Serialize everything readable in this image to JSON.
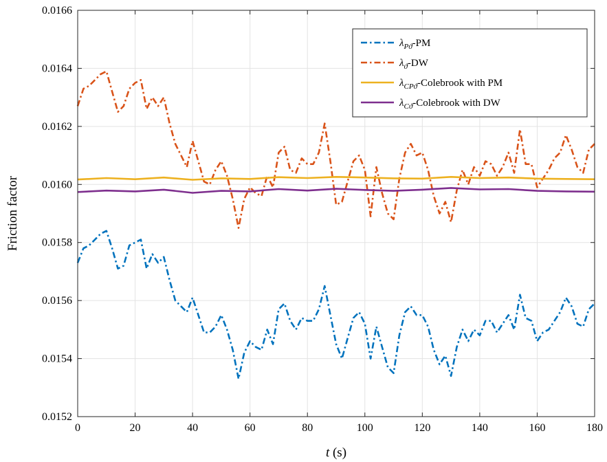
{
  "chart_data": {
    "type": "line",
    "title": "",
    "xlabel_italic": "t",
    "xlabel_rest": " (s)",
    "ylabel": "Friction factor",
    "xlim": [
      0,
      180
    ],
    "ylim": [
      0.0152,
      0.0166
    ],
    "grid": true,
    "legend_position": "top-right",
    "x_ticks": [
      0,
      20,
      40,
      60,
      80,
      100,
      120,
      140,
      160,
      180
    ],
    "x_tick_labels": [
      "0",
      "20",
      "40",
      "60",
      "80",
      "100",
      "120",
      "140",
      "160",
      "180"
    ],
    "y_ticks": [
      0.0152,
      0.0154,
      0.0156,
      0.0158,
      0.016,
      0.0162,
      0.0164,
      0.0166
    ],
    "y_tick_labels": [
      "0.0152",
      "0.0154",
      "0.0156",
      "0.0158",
      "0.0160",
      "0.0162",
      "0.0164",
      "0.0166"
    ],
    "series": [
      {
        "name": "λPϑ-PM",
        "legend": {
          "symbol": "λ",
          "sub": "Pϑ",
          "rest": "-PM"
        },
        "color": "#0072BD",
        "style": "dashdot",
        "x": [
          0,
          2,
          4,
          6,
          8,
          10,
          12,
          14,
          16,
          18,
          20,
          22,
          24,
          26,
          28,
          30,
          32,
          34,
          36,
          38,
          40,
          42,
          44,
          46,
          48,
          50,
          52,
          54,
          56,
          58,
          60,
          62,
          64,
          66,
          68,
          70,
          72,
          74,
          76,
          78,
          80,
          82,
          84,
          86,
          88,
          90,
          92,
          94,
          96,
          98,
          100,
          102,
          104,
          106,
          108,
          110,
          112,
          114,
          116,
          118,
          120,
          122,
          124,
          126,
          128,
          130,
          132,
          134,
          136,
          138,
          140,
          142,
          144,
          146,
          148,
          150,
          152,
          154,
          156,
          158,
          160,
          162,
          164,
          166,
          168,
          170,
          172,
          174,
          176,
          178,
          180
        ],
        "y": [
          0.01573,
          0.01578,
          0.01579,
          0.01581,
          0.01583,
          0.01584,
          0.01578,
          0.01571,
          0.01572,
          0.01579,
          0.0158,
          0.01581,
          0.01571,
          0.01576,
          0.01573,
          0.01575,
          0.01567,
          0.0156,
          0.01558,
          0.01556,
          0.01561,
          0.01555,
          0.01549,
          0.01549,
          0.01551,
          0.01555,
          0.0155,
          0.01543,
          0.01533,
          0.01542,
          0.01546,
          0.01544,
          0.01543,
          0.0155,
          0.01545,
          0.01557,
          0.01559,
          0.01553,
          0.0155,
          0.01554,
          0.01553,
          0.01553,
          0.01557,
          0.01565,
          0.01555,
          0.01545,
          0.0154,
          0.01547,
          0.01554,
          0.01556,
          0.01552,
          0.0154,
          0.01551,
          0.01544,
          0.01537,
          0.01535,
          0.01548,
          0.01556,
          0.01558,
          0.01555,
          0.01555,
          0.01551,
          0.01543,
          0.01538,
          0.01541,
          0.01534,
          0.01544,
          0.0155,
          0.01546,
          0.0155,
          0.01548,
          0.01553,
          0.01553,
          0.01549,
          0.01552,
          0.01555,
          0.0155,
          0.01562,
          0.01554,
          0.01553,
          0.01546,
          0.01549,
          0.0155,
          0.01553,
          0.01556,
          0.01561,
          0.01558,
          0.01552,
          0.01551,
          0.01557,
          0.01559
        ]
      },
      {
        "name": "λϑ-DW",
        "legend": {
          "symbol": "λ",
          "sub": "ϑ",
          "rest": "-DW"
        },
        "color": "#D95319",
        "style": "dashdot",
        "x": [
          0,
          2,
          4,
          6,
          8,
          10,
          12,
          14,
          16,
          18,
          20,
          22,
          24,
          26,
          28,
          30,
          32,
          34,
          36,
          38,
          40,
          42,
          44,
          46,
          48,
          50,
          52,
          54,
          56,
          58,
          60,
          62,
          64,
          66,
          68,
          70,
          72,
          74,
          76,
          78,
          80,
          82,
          84,
          86,
          88,
          90,
          92,
          94,
          96,
          98,
          100,
          102,
          104,
          106,
          108,
          110,
          112,
          114,
          116,
          118,
          120,
          122,
          124,
          126,
          128,
          130,
          132,
          134,
          136,
          138,
          140,
          142,
          144,
          146,
          148,
          150,
          152,
          154,
          156,
          158,
          160,
          162,
          164,
          166,
          168,
          170,
          172,
          174,
          176,
          178,
          180
        ],
        "y": [
          0.01627,
          0.01633,
          0.01634,
          0.01636,
          0.01638,
          0.01639,
          0.01632,
          0.01625,
          0.01627,
          0.01633,
          0.01635,
          0.01636,
          0.01626,
          0.0163,
          0.01627,
          0.0163,
          0.01621,
          0.01614,
          0.0161,
          0.01606,
          0.01615,
          0.01608,
          0.01601,
          0.016,
          0.01605,
          0.01608,
          0.01603,
          0.01595,
          0.01585,
          0.01595,
          0.01599,
          0.01597,
          0.01596,
          0.01603,
          0.01599,
          0.01611,
          0.01613,
          0.01605,
          0.01604,
          0.01609,
          0.01607,
          0.01607,
          0.01611,
          0.01621,
          0.01608,
          0.01593,
          0.01594,
          0.01601,
          0.01608,
          0.0161,
          0.01605,
          0.01589,
          0.01606,
          0.01597,
          0.0159,
          0.01588,
          0.01602,
          0.01611,
          0.01614,
          0.0161,
          0.01611,
          0.01605,
          0.01596,
          0.0159,
          0.01594,
          0.01587,
          0.01598,
          0.01605,
          0.016,
          0.01606,
          0.01603,
          0.01608,
          0.01607,
          0.01603,
          0.01606,
          0.01611,
          0.01604,
          0.01619,
          0.01607,
          0.01607,
          0.01599,
          0.01602,
          0.01605,
          0.01609,
          0.01611,
          0.01617,
          0.01612,
          0.01606,
          0.01604,
          0.01612,
          0.01614
        ]
      },
      {
        "name": "λCPϑ-Colebrook with PM",
        "legend": {
          "symbol": "λ",
          "sub": "CPϑ",
          "rest": "-Colebrook with PM"
        },
        "color": "#EDB120",
        "style": "solid",
        "x": [
          0,
          10,
          20,
          30,
          40,
          50,
          60,
          70,
          80,
          90,
          100,
          110,
          120,
          130,
          140,
          150,
          160,
          170,
          180
        ],
        "y": [
          0.016017,
          0.016022,
          0.016018,
          0.016024,
          0.016016,
          0.016021,
          0.016019,
          0.016025,
          0.016022,
          0.016026,
          0.016024,
          0.016021,
          0.01602,
          0.016026,
          0.016022,
          0.016024,
          0.01602,
          0.016019,
          0.016018
        ]
      },
      {
        "name": "λCϑ-Colebrook with DW",
        "legend": {
          "symbol": "λ",
          "sub": "Cϑ",
          "rest": "-Colebrook with DW"
        },
        "color": "#7E2F8E",
        "style": "solid",
        "x": [
          0,
          10,
          20,
          30,
          40,
          50,
          60,
          70,
          80,
          90,
          100,
          110,
          120,
          130,
          140,
          150,
          160,
          170,
          180
        ],
        "y": [
          0.015974,
          0.015979,
          0.015976,
          0.015982,
          0.015971,
          0.015978,
          0.015976,
          0.015984,
          0.015979,
          0.015985,
          0.015981,
          0.015978,
          0.015982,
          0.015988,
          0.015983,
          0.015984,
          0.015978,
          0.015976,
          0.015975
        ]
      }
    ]
  }
}
